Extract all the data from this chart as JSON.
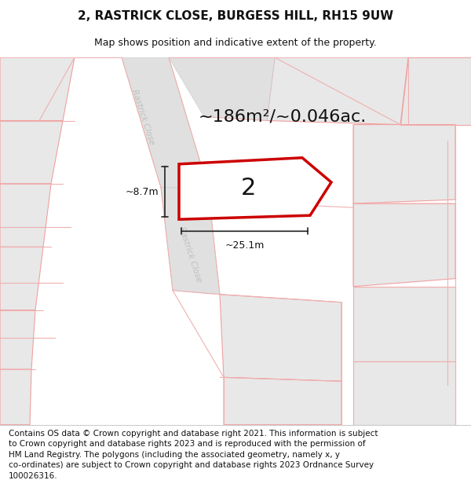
{
  "title": "2, RASTRICK CLOSE, BURGESS HILL, RH15 9UW",
  "subtitle": "Map shows position and indicative extent of the property.",
  "area_text": "~186m²/~0.046ac.",
  "label_number": "2",
  "dim_width": "~25.1m",
  "dim_height": "~8.7m",
  "footer_line1": "Contains OS data © Crown copyright and database right 2021. This information is subject",
  "footer_line2": "to Crown copyright and database rights 2023 and is reproduced with the permission of",
  "footer_line3": "HM Land Registry. The polygons (including the associated geometry, namely x, y",
  "footer_line4": "co-ordinates) are subject to Crown copyright and database rights 2023 Ordnance Survey",
  "footer_line5": "100026316.",
  "bg_color": "#ffffff",
  "map_bg": "#f2f2f2",
  "plot_fill": "#ffffff",
  "plot_border": "#cc0000",
  "title_fontsize": 11,
  "subtitle_fontsize": 9,
  "area_fontsize": 16,
  "number_fontsize": 22,
  "footer_fontsize": 7.5,
  "road_label_color": "#c0c0c0",
  "dim_line_color": "#222222",
  "parcel_edge": "#f0a0a0",
  "parcel_face": "#e8e8e8",
  "road_face": "#e0e0e0"
}
